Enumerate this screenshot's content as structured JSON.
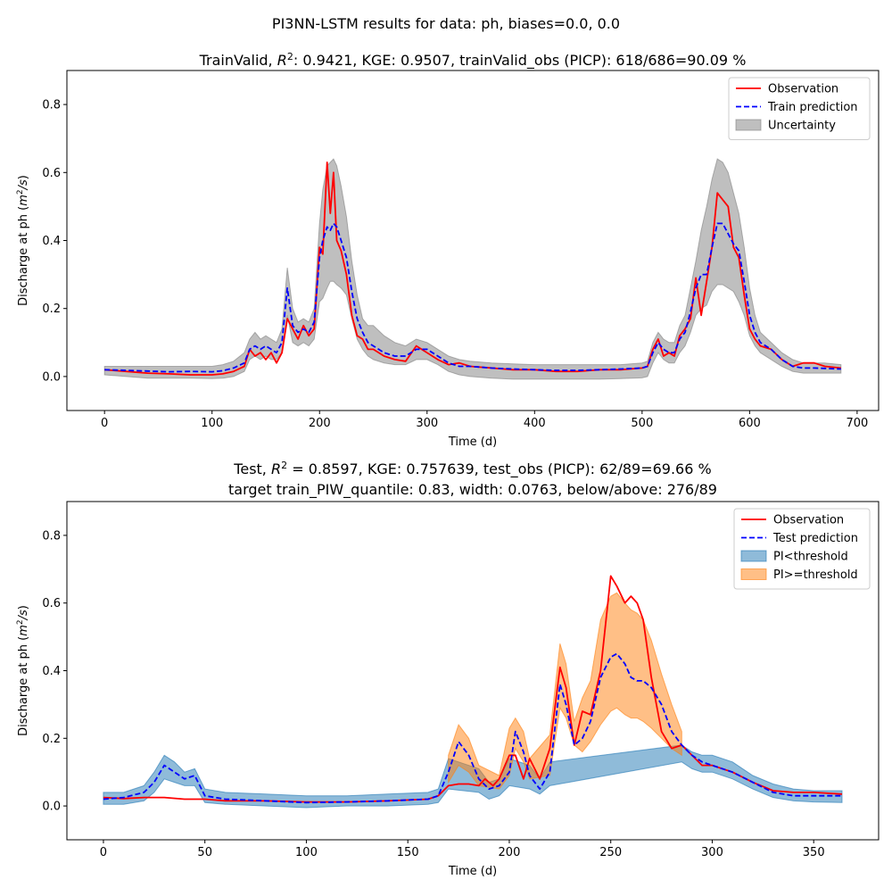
{
  "figure": {
    "suptitle": "PI3NN-LSTM results for data: ph, biases=0.0, 0.0"
  },
  "chart_data": [
    {
      "type": "line",
      "title": "TrainValid, R²: 0.9421,  KGE: 0.9507, trainValid_obs (PICP): 618/686=90.09 %",
      "xlabel": "Time (d)",
      "ylabel": "Discharge at ph (m²/s)",
      "xlim": [
        -35,
        720
      ],
      "ylim": [
        -0.1,
        0.9
      ],
      "xticks": [
        0,
        100,
        200,
        300,
        400,
        500,
        600,
        700
      ],
      "yticks": [
        0.0,
        0.2,
        0.4,
        0.6,
        0.8
      ],
      "grid": false,
      "legend_placement": "upper right",
      "legend": [
        "Observation",
        "Train prediction",
        "Uncertainty"
      ],
      "series": [
        {
          "name": "Observation",
          "color": "#ff0000",
          "style": "solid",
          "x": [
            0,
            20,
            40,
            60,
            80,
            100,
            110,
            120,
            130,
            135,
            140,
            145,
            150,
            155,
            160,
            165,
            170,
            175,
            180,
            185,
            190,
            195,
            200,
            203,
            207,
            210,
            213,
            216,
            220,
            225,
            230,
            235,
            240,
            245,
            250,
            260,
            270,
            280,
            290,
            300,
            310,
            320,
            330,
            340,
            360,
            380,
            400,
            420,
            440,
            460,
            480,
            500,
            505,
            510,
            515,
            520,
            525,
            530,
            535,
            540,
            545,
            550,
            555,
            560,
            565,
            570,
            575,
            580,
            585,
            590,
            595,
            600,
            605,
            610,
            620,
            630,
            640,
            650,
            660,
            670,
            685
          ],
          "y": [
            0.02,
            0.015,
            0.01,
            0.008,
            0.005,
            0.005,
            0.008,
            0.015,
            0.03,
            0.08,
            0.06,
            0.07,
            0.05,
            0.07,
            0.04,
            0.07,
            0.17,
            0.14,
            0.11,
            0.15,
            0.12,
            0.14,
            0.38,
            0.36,
            0.63,
            0.48,
            0.6,
            0.4,
            0.37,
            0.3,
            0.18,
            0.12,
            0.11,
            0.08,
            0.08,
            0.06,
            0.05,
            0.045,
            0.09,
            0.07,
            0.05,
            0.035,
            0.04,
            0.03,
            0.025,
            0.02,
            0.02,
            0.015,
            0.015,
            0.02,
            0.02,
            0.025,
            0.03,
            0.08,
            0.11,
            0.06,
            0.07,
            0.06,
            0.12,
            0.14,
            0.17,
            0.29,
            0.18,
            0.28,
            0.38,
            0.54,
            0.52,
            0.5,
            0.38,
            0.35,
            0.24,
            0.14,
            0.11,
            0.09,
            0.08,
            0.05,
            0.03,
            0.04,
            0.04,
            0.03,
            0.025
          ]
        },
        {
          "name": "Train prediction",
          "color": "#0000ff",
          "style": "dashed",
          "x": [
            0,
            20,
            40,
            60,
            80,
            100,
            110,
            120,
            130,
            135,
            140,
            145,
            150,
            155,
            160,
            165,
            170,
            175,
            180,
            185,
            190,
            195,
            200,
            203,
            207,
            210,
            213,
            216,
            220,
            225,
            230,
            235,
            240,
            245,
            250,
            260,
            270,
            280,
            290,
            300,
            310,
            320,
            330,
            340,
            360,
            380,
            400,
            420,
            440,
            460,
            480,
            500,
            505,
            510,
            515,
            520,
            525,
            530,
            535,
            540,
            545,
            550,
            555,
            560,
            565,
            570,
            575,
            580,
            585,
            590,
            595,
            600,
            605,
            610,
            620,
            630,
            640,
            650,
            660,
            670,
            685
          ],
          "y": [
            0.02,
            0.018,
            0.016,
            0.014,
            0.015,
            0.014,
            0.017,
            0.025,
            0.04,
            0.08,
            0.09,
            0.08,
            0.09,
            0.08,
            0.07,
            0.1,
            0.26,
            0.15,
            0.13,
            0.14,
            0.13,
            0.16,
            0.35,
            0.4,
            0.44,
            0.43,
            0.45,
            0.44,
            0.4,
            0.35,
            0.25,
            0.17,
            0.13,
            0.1,
            0.09,
            0.07,
            0.06,
            0.06,
            0.08,
            0.08,
            0.06,
            0.04,
            0.03,
            0.03,
            0.025,
            0.022,
            0.02,
            0.018,
            0.018,
            0.02,
            0.022,
            0.025,
            0.03,
            0.07,
            0.1,
            0.08,
            0.07,
            0.07,
            0.11,
            0.13,
            0.19,
            0.26,
            0.3,
            0.3,
            0.38,
            0.45,
            0.45,
            0.42,
            0.39,
            0.37,
            0.28,
            0.18,
            0.13,
            0.1,
            0.08,
            0.05,
            0.03,
            0.025,
            0.025,
            0.024,
            0.022
          ]
        },
        {
          "name": "Uncertainty",
          "color": "#808080",
          "style": "band",
          "x": [
            0,
            20,
            40,
            60,
            80,
            100,
            110,
            120,
            130,
            135,
            140,
            145,
            150,
            155,
            160,
            165,
            170,
            175,
            180,
            185,
            190,
            195,
            200,
            203,
            207,
            210,
            213,
            216,
            220,
            225,
            230,
            235,
            240,
            245,
            250,
            260,
            270,
            280,
            290,
            300,
            310,
            320,
            330,
            340,
            360,
            380,
            400,
            420,
            440,
            460,
            480,
            500,
            505,
            510,
            515,
            520,
            525,
            530,
            535,
            540,
            545,
            550,
            555,
            560,
            565,
            570,
            575,
            580,
            585,
            590,
            595,
            600,
            605,
            610,
            620,
            630,
            640,
            650,
            660,
            670,
            685
          ],
          "lower": [
            0.005,
            0.0,
            -0.005,
            -0.005,
            -0.005,
            -0.006,
            -0.005,
            0.0,
            0.015,
            0.05,
            0.06,
            0.05,
            0.06,
            0.05,
            0.05,
            0.07,
            0.18,
            0.1,
            0.09,
            0.1,
            0.09,
            0.11,
            0.22,
            0.23,
            0.26,
            0.28,
            0.28,
            0.27,
            0.26,
            0.24,
            0.17,
            0.11,
            0.08,
            0.06,
            0.05,
            0.04,
            0.035,
            0.035,
            0.05,
            0.05,
            0.035,
            0.015,
            0.005,
            0.0,
            -0.005,
            -0.008,
            -0.008,
            -0.008,
            -0.008,
            -0.008,
            -0.006,
            -0.004,
            0.0,
            0.04,
            0.07,
            0.05,
            0.04,
            0.04,
            0.07,
            0.09,
            0.13,
            0.18,
            0.2,
            0.21,
            0.25,
            0.27,
            0.27,
            0.26,
            0.25,
            0.22,
            0.18,
            0.12,
            0.09,
            0.07,
            0.05,
            0.03,
            0.015,
            0.01,
            0.01,
            0.01,
            0.01
          ],
          "upper": [
            0.03,
            0.03,
            0.03,
            0.03,
            0.03,
            0.03,
            0.035,
            0.045,
            0.07,
            0.11,
            0.13,
            0.11,
            0.12,
            0.11,
            0.1,
            0.14,
            0.32,
            0.2,
            0.16,
            0.17,
            0.16,
            0.2,
            0.45,
            0.55,
            0.62,
            0.63,
            0.64,
            0.62,
            0.56,
            0.47,
            0.34,
            0.24,
            0.17,
            0.15,
            0.15,
            0.12,
            0.1,
            0.09,
            0.11,
            0.1,
            0.08,
            0.06,
            0.05,
            0.045,
            0.04,
            0.037,
            0.035,
            0.035,
            0.035,
            0.035,
            0.035,
            0.04,
            0.045,
            0.1,
            0.13,
            0.11,
            0.1,
            0.1,
            0.15,
            0.18,
            0.26,
            0.34,
            0.43,
            0.5,
            0.58,
            0.64,
            0.63,
            0.6,
            0.54,
            0.48,
            0.38,
            0.26,
            0.18,
            0.13,
            0.1,
            0.07,
            0.05,
            0.04,
            0.04,
            0.04,
            0.035
          ]
        }
      ]
    },
    {
      "type": "line",
      "title": "Test, R² = 0.8597, KGE: 0.757639, test_obs (PICP): 62/89=69.66 %",
      "subtitle": "target train_PIW_quantile: 0.83, width: 0.0763, below/above: 276/89",
      "xlabel": "Time (d)",
      "ylabel": "Discharge at ph (m²/s)",
      "xlim": [
        -18,
        382
      ],
      "ylim": [
        -0.1,
        0.9
      ],
      "xticks": [
        0,
        50,
        100,
        150,
        200,
        250,
        300,
        350
      ],
      "yticks": [
        0.0,
        0.2,
        0.4,
        0.6,
        0.8
      ],
      "grid": false,
      "legend_placement": "upper right",
      "legend": [
        "Observation",
        "Test prediction",
        "PI<threshold",
        "PI>=threshold"
      ],
      "series": [
        {
          "name": "Observation",
          "color": "#ff0000",
          "style": "solid",
          "x": [
            0,
            10,
            20,
            30,
            40,
            50,
            60,
            80,
            100,
            120,
            140,
            160,
            165,
            170,
            175,
            180,
            185,
            188,
            192,
            195,
            200,
            203,
            207,
            210,
            215,
            220,
            225,
            228,
            232,
            236,
            240,
            245,
            250,
            253,
            257,
            260,
            263,
            266,
            270,
            275,
            280,
            285,
            290,
            295,
            300,
            310,
            320,
            330,
            340,
            350,
            364
          ],
          "y": [
            0.025,
            0.022,
            0.025,
            0.025,
            0.02,
            0.02,
            0.015,
            0.015,
            0.012,
            0.012,
            0.015,
            0.02,
            0.03,
            0.06,
            0.065,
            0.065,
            0.06,
            0.08,
            0.06,
            0.08,
            0.15,
            0.15,
            0.08,
            0.14,
            0.08,
            0.17,
            0.41,
            0.35,
            0.18,
            0.28,
            0.27,
            0.4,
            0.68,
            0.65,
            0.6,
            0.62,
            0.6,
            0.55,
            0.38,
            0.22,
            0.17,
            0.18,
            0.15,
            0.12,
            0.12,
            0.1,
            0.07,
            0.045,
            0.04,
            0.04,
            0.035
          ]
        },
        {
          "name": "Test prediction",
          "color": "#0000ff",
          "style": "dashed",
          "x": [
            0,
            10,
            20,
            25,
            30,
            35,
            40,
            45,
            50,
            60,
            80,
            100,
            120,
            140,
            160,
            165,
            170,
            175,
            180,
            185,
            190,
            195,
            200,
            203,
            207,
            210,
            215,
            220,
            225,
            228,
            232,
            236,
            240,
            245,
            250,
            253,
            257,
            260,
            263,
            266,
            270,
            275,
            280,
            285,
            290,
            295,
            300,
            310,
            320,
            330,
            340,
            350,
            364
          ],
          "y": [
            0.02,
            0.025,
            0.04,
            0.07,
            0.12,
            0.1,
            0.08,
            0.09,
            0.03,
            0.02,
            0.015,
            0.01,
            0.012,
            0.015,
            0.02,
            0.03,
            0.1,
            0.19,
            0.15,
            0.08,
            0.05,
            0.06,
            0.1,
            0.22,
            0.16,
            0.09,
            0.05,
            0.1,
            0.36,
            0.3,
            0.18,
            0.2,
            0.25,
            0.38,
            0.44,
            0.45,
            0.42,
            0.38,
            0.37,
            0.37,
            0.35,
            0.3,
            0.22,
            0.18,
            0.15,
            0.13,
            0.12,
            0.1,
            0.07,
            0.04,
            0.03,
            0.03,
            0.03
          ]
        },
        {
          "name": "PI<threshold",
          "color": "#1f77b4",
          "style": "band",
          "x": [
            0,
            10,
            20,
            25,
            30,
            35,
            40,
            45,
            50,
            60,
            80,
            100,
            120,
            140,
            160,
            165,
            170,
            185,
            190,
            195,
            200,
            210,
            215,
            220,
            285,
            290,
            295,
            300,
            310,
            320,
            330,
            340,
            350,
            364
          ],
          "lower": [
            0.005,
            0.005,
            0.015,
            0.04,
            0.08,
            0.07,
            0.06,
            0.06,
            0.01,
            0.005,
            0.0,
            -0.005,
            0.0,
            0.0,
            0.005,
            0.01,
            0.05,
            0.04,
            0.02,
            0.03,
            0.06,
            0.05,
            0.035,
            0.06,
            0.13,
            0.11,
            0.1,
            0.1,
            0.08,
            0.05,
            0.025,
            0.015,
            0.012,
            0.01
          ],
          "upper": [
            0.04,
            0.04,
            0.06,
            0.1,
            0.15,
            0.13,
            0.1,
            0.11,
            0.05,
            0.04,
            0.035,
            0.03,
            0.03,
            0.035,
            0.04,
            0.05,
            0.14,
            0.11,
            0.07,
            0.08,
            0.14,
            0.12,
            0.08,
            0.13,
            0.18,
            0.16,
            0.15,
            0.15,
            0.13,
            0.09,
            0.065,
            0.05,
            0.045,
            0.045
          ]
        },
        {
          "name": "PI>=threshold",
          "color": "#ff7f0e",
          "style": "band",
          "x": [
            170,
            175,
            180,
            185,
            195,
            200,
            203,
            207,
            210,
            220,
            225,
            228,
            232,
            236,
            240,
            245,
            250,
            253,
            257,
            260,
            263,
            266,
            270,
            275,
            280,
            285
          ],
          "lower": [
            0.07,
            0.12,
            0.1,
            0.06,
            0.05,
            0.09,
            0.17,
            0.13,
            0.08,
            0.09,
            0.29,
            0.26,
            0.18,
            0.16,
            0.19,
            0.24,
            0.28,
            0.29,
            0.27,
            0.26,
            0.26,
            0.25,
            0.23,
            0.2,
            0.17,
            0.15
          ],
          "upper": [
            0.15,
            0.24,
            0.2,
            0.12,
            0.09,
            0.23,
            0.26,
            0.22,
            0.14,
            0.21,
            0.48,
            0.42,
            0.25,
            0.32,
            0.37,
            0.55,
            0.62,
            0.63,
            0.6,
            0.58,
            0.57,
            0.55,
            0.49,
            0.39,
            0.3,
            0.22
          ]
        }
      ]
    }
  ]
}
